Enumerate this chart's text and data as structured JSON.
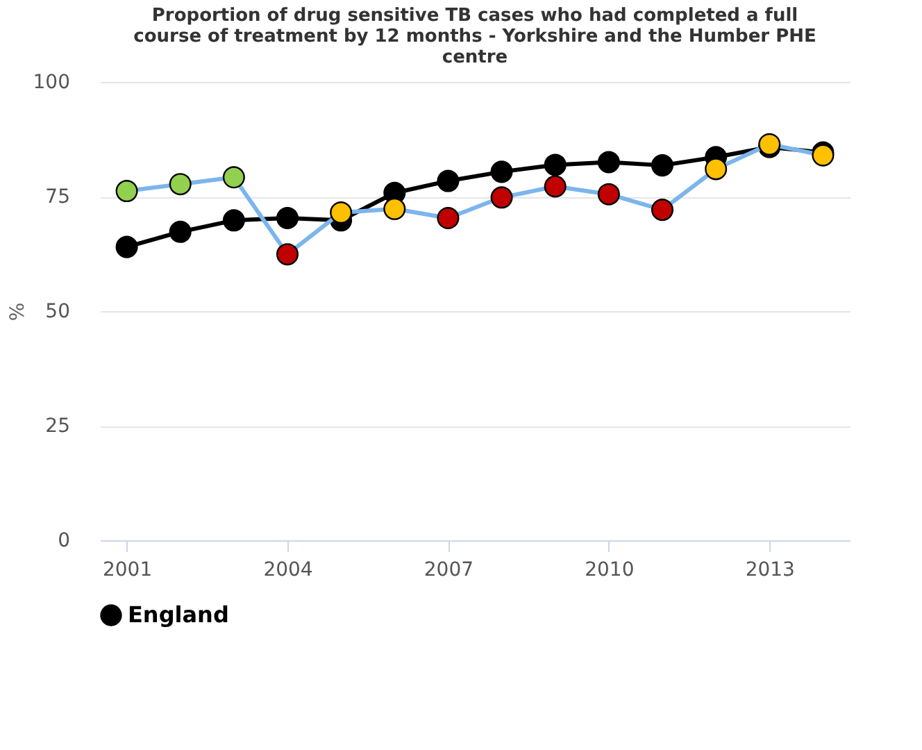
{
  "chart_data": {
    "type": "line",
    "title": [
      "Proportion of drug sensitive TB cases who had completed a full",
      "course of treatment by 12 months - Yorkshire and the Humber PHE",
      "centre"
    ],
    "ylabel": "%",
    "x": [
      2001,
      2002,
      2003,
      2004,
      2005,
      2006,
      2007,
      2008,
      2009,
      2010,
      2011,
      2012,
      2013,
      2014
    ],
    "xlim": [
      2000.5,
      2014.5
    ],
    "xticks": [
      2001,
      2004,
      2007,
      2010,
      2013
    ],
    "ylim": [
      0,
      100
    ],
    "yticks": [
      0,
      25,
      50,
      75,
      100
    ],
    "grid": "y",
    "legend": "bottom",
    "marker": "circle",
    "line_style": "solid",
    "series": [
      {
        "name": "England",
        "color": "#000000",
        "values": [
          64,
          67.3,
          69.8,
          70.3,
          69.8,
          75.8,
          78.4,
          80.4,
          81.9,
          82.5,
          81.8,
          83.6,
          85.8,
          84.6
        ]
      },
      {
        "color": "#7cb5ec",
        "colors": [
          "#92d050",
          "#92d050",
          "#92d050",
          "#c00000",
          "#ffc000",
          "#ffc000",
          "#c00000",
          "#c00000",
          "#c00000",
          "#c00000",
          "#c00000",
          "#ffc000",
          "#ffc000",
          "#ffc000"
        ],
        "values": [
          76.2,
          77.7,
          79.2,
          62.4,
          71.5,
          72.3,
          70.3,
          74.8,
          77.2,
          75.5,
          72.1,
          81,
          86.4,
          84
        ]
      }
    ]
  }
}
